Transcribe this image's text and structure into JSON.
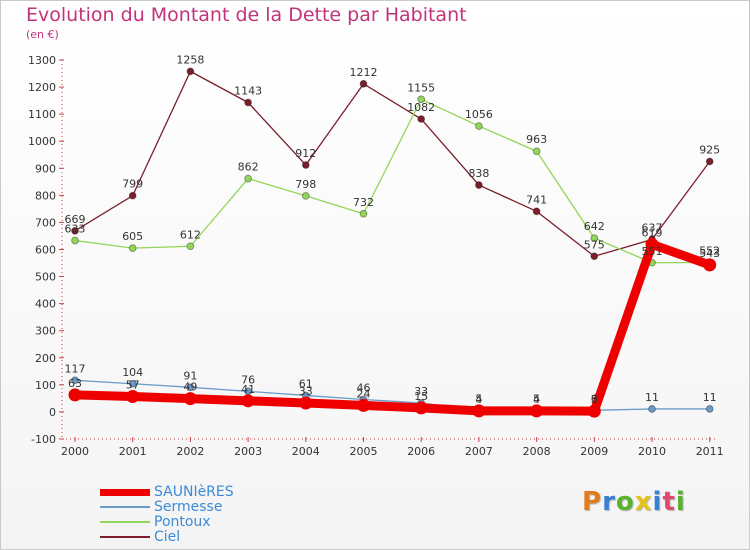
{
  "header": {
    "title": "Evolution du Montant de la Dette par Habitant",
    "subtitle": "(en €)"
  },
  "brand": {
    "text": "Proxiti",
    "colors": [
      "#e07a1f",
      "#3a7fd1",
      "#58b22e",
      "#e4c21c",
      "#3a7fd1",
      "#e04b6b",
      "#58b22e"
    ]
  },
  "chart_data": {
    "type": "line",
    "title": "Evolution du Montant de la Dette par Habitant",
    "subtitle": "(en €)",
    "xlabel": "",
    "ylabel": "",
    "categories": [
      "2000",
      "2001",
      "2002",
      "2003",
      "2004",
      "2005",
      "2006",
      "2007",
      "2008",
      "2009",
      "2010",
      "2011"
    ],
    "ylim": [
      -100,
      1300
    ],
    "yticks": [
      -100,
      0,
      100,
      200,
      300,
      400,
      500,
      600,
      700,
      800,
      900,
      1000,
      1100,
      1200,
      1300
    ],
    "grid": false,
    "legend_position": "bottom-left",
    "series": [
      {
        "name": "Ciel",
        "color": "#7a1f2b",
        "values": [
          669,
          799,
          1258,
          1143,
          912,
          1212,
          1082,
          838,
          741,
          575,
          637,
          925
        ],
        "labels": [
          "669",
          "799",
          "1258",
          "1143",
          "912",
          "1212",
          "1082",
          "838",
          "741",
          "575",
          "637",
          "925"
        ]
      },
      {
        "name": "Pontoux",
        "color": "#92d65a",
        "values": [
          633,
          605,
          612,
          862,
          798,
          732,
          1155,
          1056,
          963,
          642,
          551,
          552
        ],
        "labels": [
          "633",
          "605",
          "612",
          "862",
          "798",
          "732",
          "1155",
          "1056",
          "963",
          "642",
          "551",
          "552"
        ]
      },
      {
        "name": "Sermesse",
        "color": "#6a9bc9",
        "values": [
          117,
          104,
          91,
          76,
          61,
          46,
          33,
          5,
          5,
          6,
          11,
          11
        ],
        "labels": [
          "117",
          "104",
          "91",
          "76",
          "61",
          "46",
          "33",
          "5",
          "5",
          "6",
          "11",
          "11"
        ]
      },
      {
        "name": "SAUNIèRES",
        "color": "#ee0000",
        "values": [
          63,
          57,
          49,
          41,
          33,
          24,
          15,
          4,
          4,
          3,
          619,
          543
        ],
        "labels": [
          "63",
          "57",
          "49",
          "41",
          "33",
          "24",
          "15",
          "4",
          "4",
          "3",
          "619",
          "543"
        ]
      }
    ],
    "legend": [
      "SAUNIèRES",
      "Sermesse",
      "Pontoux",
      "Ciel"
    ]
  }
}
